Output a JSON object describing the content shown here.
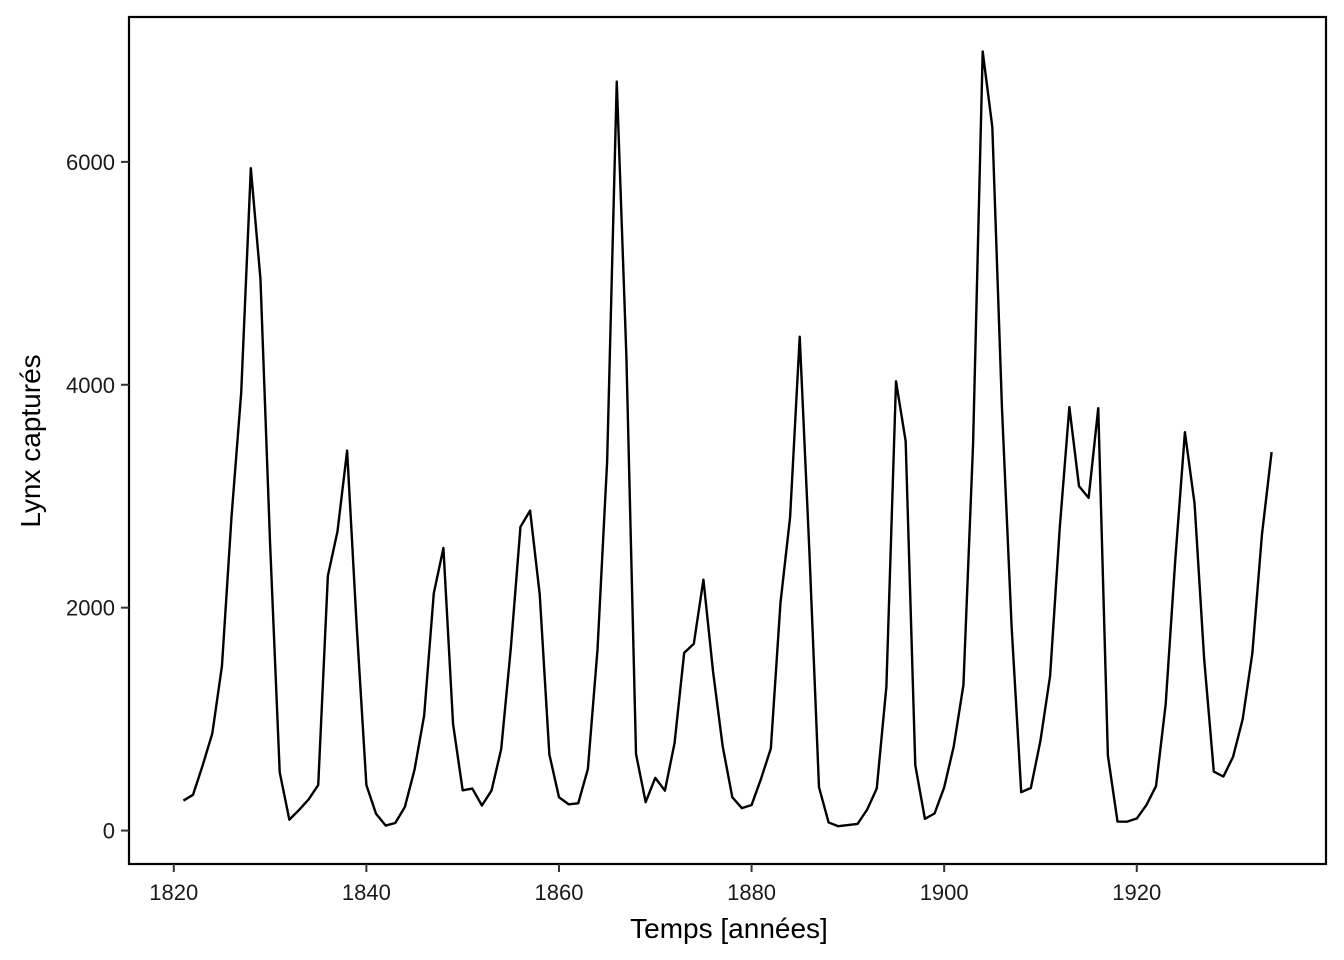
{
  "chart_data": {
    "type": "line",
    "title": "",
    "xlabel": "Temps  [années]",
    "ylabel": "Lynx capturés",
    "xlim": [
      1815.35,
      1939.65
    ],
    "ylim": [
      -300,
      7300
    ],
    "xticks": [
      1820,
      1840,
      1860,
      1880,
      1900,
      1920
    ],
    "yticks": [
      0,
      2000,
      4000,
      6000
    ],
    "xtick_labels": [
      "1820",
      "1840",
      "1860",
      "1880",
      "1900",
      "1920"
    ],
    "ytick_labels": [
      "0",
      "2000",
      "4000",
      "6000"
    ],
    "grid": false,
    "legend": "none",
    "line_color": "#000000",
    "series": [
      {
        "x": [
          1821,
          1822,
          1823,
          1824,
          1825,
          1826,
          1827,
          1828,
          1829,
          1830,
          1831,
          1832,
          1833,
          1834,
          1835,
          1836,
          1837,
          1838,
          1839,
          1840,
          1841,
          1842,
          1843,
          1844,
          1845,
          1846,
          1847,
          1848,
          1849,
          1850,
          1851,
          1852,
          1853,
          1854,
          1855,
          1856,
          1857,
          1858,
          1859,
          1860,
          1861,
          1862,
          1863,
          1864,
          1865,
          1866,
          1867,
          1868,
          1869,
          1870,
          1871,
          1872,
          1873,
          1874,
          1875,
          1876,
          1877,
          1878,
          1879,
          1880,
          1881,
          1882,
          1883,
          1884,
          1885,
          1886,
          1887,
          1888,
          1889,
          1890,
          1891,
          1892,
          1893,
          1894,
          1895,
          1896,
          1897,
          1898,
          1899,
          1900,
          1901,
          1902,
          1903,
          1904,
          1905,
          1906,
          1907,
          1908,
          1909,
          1910,
          1911,
          1912,
          1913,
          1914,
          1915,
          1916,
          1917,
          1918,
          1919,
          1920,
          1921,
          1922,
          1923,
          1924,
          1925,
          1926,
          1927,
          1928,
          1929,
          1930,
          1931,
          1932,
          1933,
          1934
        ],
        "y": [
          269,
          321,
          585,
          871,
          1475,
          2821,
          3928,
          5943,
          4950,
          2577,
          523,
          98,
          184,
          279,
          409,
          2285,
          2685,
          3409,
          1824,
          409,
          151,
          45,
          68,
          213,
          546,
          1033,
          2129,
          2536,
          957,
          361,
          377,
          225,
          360,
          731,
          1638,
          2725,
          2871,
          2119,
          684,
          299,
          236,
          245,
          552,
          1623,
          3311,
          6721,
          4254,
          687,
          255,
          473,
          358,
          784,
          1594,
          1676,
          2251,
          1426,
          756,
          299,
          201,
          229,
          469,
          736,
          2042,
          2811,
          4431,
          2511,
          389,
          73,
          39,
          49,
          59,
          188,
          377,
          1292,
          4031,
          3495,
          587,
          105,
          153,
          387,
          758,
          1307,
          3465,
          6991,
          6313,
          3794,
          1836,
          345,
          382,
          808,
          1388,
          2713,
          3800,
          3091,
          2985,
          3790,
          674,
          81,
          80,
          108,
          229,
          399,
          1132,
          2432,
          3574,
          2935,
          1537,
          529,
          485,
          662,
          1000,
          1590,
          2657,
          3396
        ]
      }
    ]
  }
}
